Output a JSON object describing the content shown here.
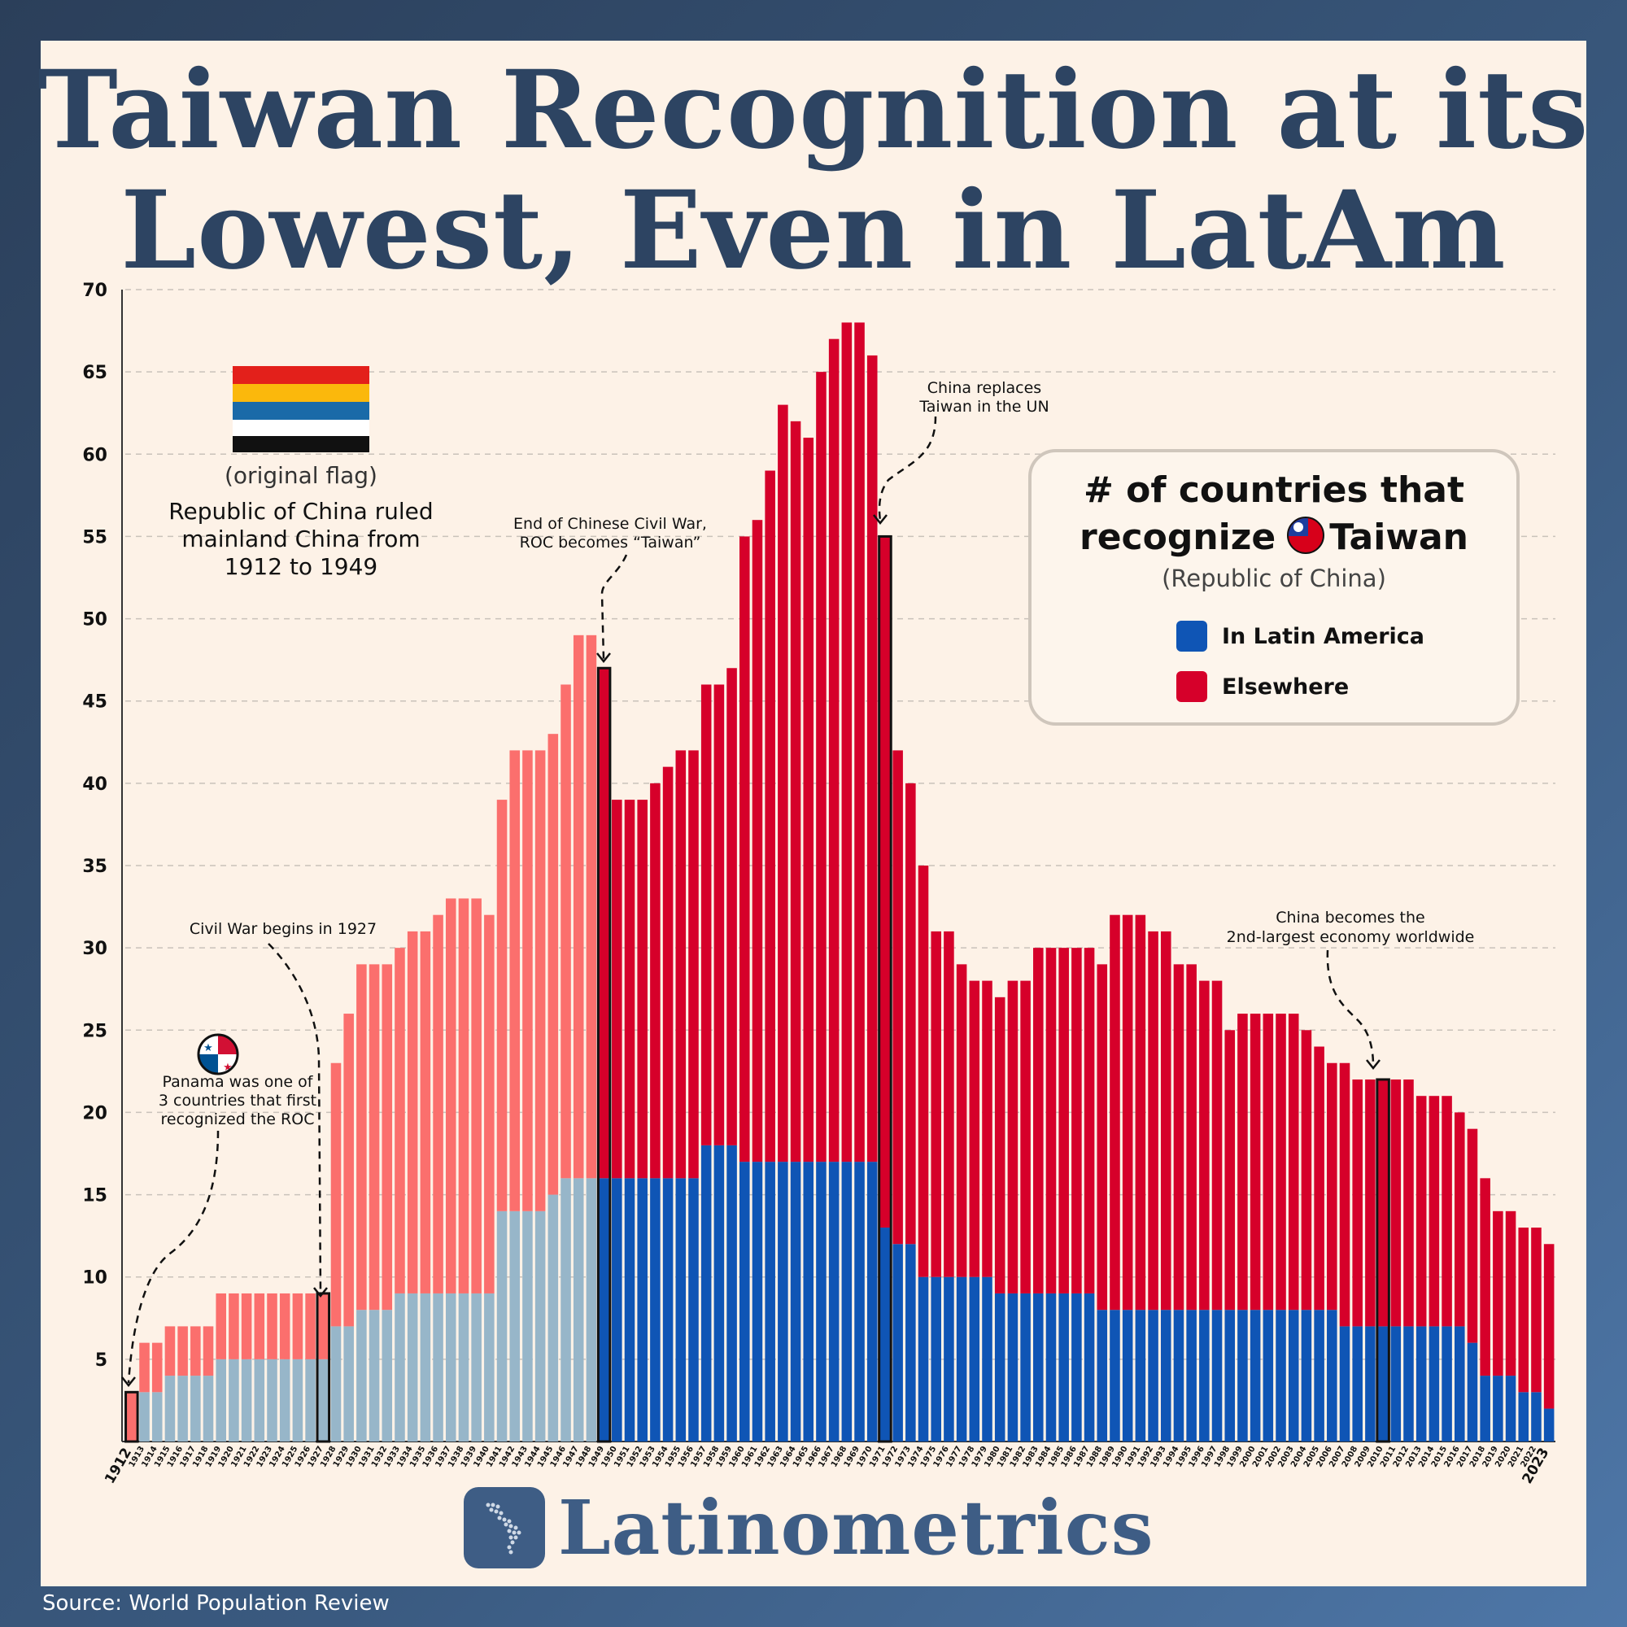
{
  "title_lines": [
    "Taiwan Recognition at its",
    "Lowest, Even in LatAm"
  ],
  "legend": {
    "title_line1": "# of countries that",
    "title_line2_prefix": "recognize",
    "title_line2_suffix": "Taiwan",
    "subtitle": "(Republic of China)",
    "items": [
      {
        "label": "In Latin America",
        "color": "#0f55b5"
      },
      {
        "label": "Elsewhere",
        "color": "#d6002a"
      }
    ]
  },
  "colors": {
    "latam_early": "#97b6c9",
    "elsewhere_early": "#fb6f6d",
    "latam": "#0f55b5",
    "elsewhere": "#d6002a",
    "title": "#2d4462"
  },
  "annotations": {
    "flag_caption": "(original flag)",
    "roc_note": [
      "Republic of China ruled",
      "mainland China from",
      "1912 to 1949"
    ],
    "panama_note": [
      "Panama was one of",
      "3 countries that first",
      "recognized the ROC"
    ],
    "civil_war": "Civil War begins in 1927",
    "civil_war_end": [
      "End of Chinese Civil War,",
      "ROC becomes “Taiwan”"
    ],
    "un": [
      "China replaces",
      "Taiwan in the UN"
    ],
    "economy": [
      "China becomes the",
      "2nd-largest economy worldwide"
    ]
  },
  "brand": "Latinometrics",
  "source": "Source: World Population Review",
  "chart_data": {
    "type": "bar",
    "stacked": true,
    "ylim": [
      0,
      70
    ],
    "yticks": [
      5,
      10,
      15,
      20,
      25,
      30,
      35,
      40,
      45,
      50,
      55,
      60,
      65,
      70
    ],
    "grid": true,
    "legend_position": "top-right",
    "x": [
      1912,
      1913,
      1914,
      1915,
      1916,
      1917,
      1918,
      1919,
      1920,
      1921,
      1922,
      1923,
      1924,
      1925,
      1926,
      1927,
      1928,
      1929,
      1930,
      1931,
      1932,
      1933,
      1934,
      1935,
      1936,
      1937,
      1938,
      1939,
      1940,
      1941,
      1942,
      1943,
      1944,
      1945,
      1946,
      1947,
      1948,
      1949,
      1950,
      1951,
      1952,
      1953,
      1954,
      1955,
      1956,
      1957,
      1958,
      1959,
      1960,
      1961,
      1962,
      1963,
      1964,
      1965,
      1966,
      1967,
      1968,
      1969,
      1970,
      1971,
      1972,
      1973,
      1974,
      1975,
      1976,
      1977,
      1978,
      1979,
      1980,
      1981,
      1982,
      1983,
      1984,
      1985,
      1986,
      1987,
      1988,
      1989,
      1990,
      1991,
      1992,
      1993,
      1994,
      1995,
      1996,
      1997,
      1998,
      1999,
      2000,
      2001,
      2002,
      2003,
      2004,
      2005,
      2006,
      2007,
      2008,
      2009,
      2010,
      2011,
      2012,
      2013,
      2014,
      2015,
      2016,
      2017,
      2018,
      2019,
      2020,
      2021,
      2022,
      2023
    ],
    "series": [
      {
        "name": "In Latin America",
        "values": [
          0,
          3,
          3,
          4,
          4,
          4,
          4,
          5,
          5,
          5,
          5,
          5,
          5,
          5,
          5,
          5,
          7,
          7,
          8,
          8,
          8,
          9,
          9,
          9,
          9,
          9,
          9,
          9,
          9,
          14,
          14,
          14,
          14,
          15,
          16,
          16,
          16,
          16,
          16,
          16,
          16,
          16,
          16,
          16,
          16,
          18,
          18,
          18,
          17,
          17,
          17,
          17,
          17,
          17,
          17,
          17,
          17,
          17,
          17,
          13,
          12,
          12,
          10,
          10,
          10,
          10,
          10,
          10,
          9,
          9,
          9,
          9,
          9,
          9,
          9,
          9,
          8,
          8,
          8,
          8,
          8,
          8,
          8,
          8,
          8,
          8,
          8,
          8,
          8,
          8,
          8,
          8,
          8,
          8,
          8,
          7,
          7,
          7,
          7,
          7,
          7,
          7,
          7,
          7,
          7,
          6,
          4,
          4,
          4,
          3,
          3,
          2
        ]
      },
      {
        "name": "Elsewhere",
        "values": [
          3,
          3,
          3,
          3,
          3,
          3,
          3,
          4,
          4,
          4,
          4,
          4,
          4,
          4,
          4,
          4,
          16,
          19,
          21,
          21,
          21,
          21,
          22,
          22,
          23,
          24,
          24,
          24,
          23,
          25,
          28,
          28,
          28,
          28,
          30,
          33,
          33,
          31,
          23,
          23,
          23,
          24,
          25,
          26,
          26,
          28,
          28,
          29,
          38,
          39,
          42,
          46,
          45,
          44,
          48,
          50,
          51,
          51,
          49,
          42,
          30,
          28,
          25,
          21,
          21,
          19,
          18,
          18,
          18,
          19,
          19,
          21,
          21,
          21,
          21,
          21,
          21,
          24,
          24,
          24,
          23,
          23,
          21,
          21,
          20,
          20,
          17,
          18,
          18,
          18,
          18,
          18,
          17,
          16,
          15,
          16,
          15,
          15,
          15,
          15,
          15,
          14,
          14,
          14,
          13,
          13,
          12,
          10,
          10,
          10,
          10,
          10
        ]
      }
    ],
    "highlighted_years": [
      1912,
      1927,
      1949,
      1971,
      2010
    ]
  }
}
